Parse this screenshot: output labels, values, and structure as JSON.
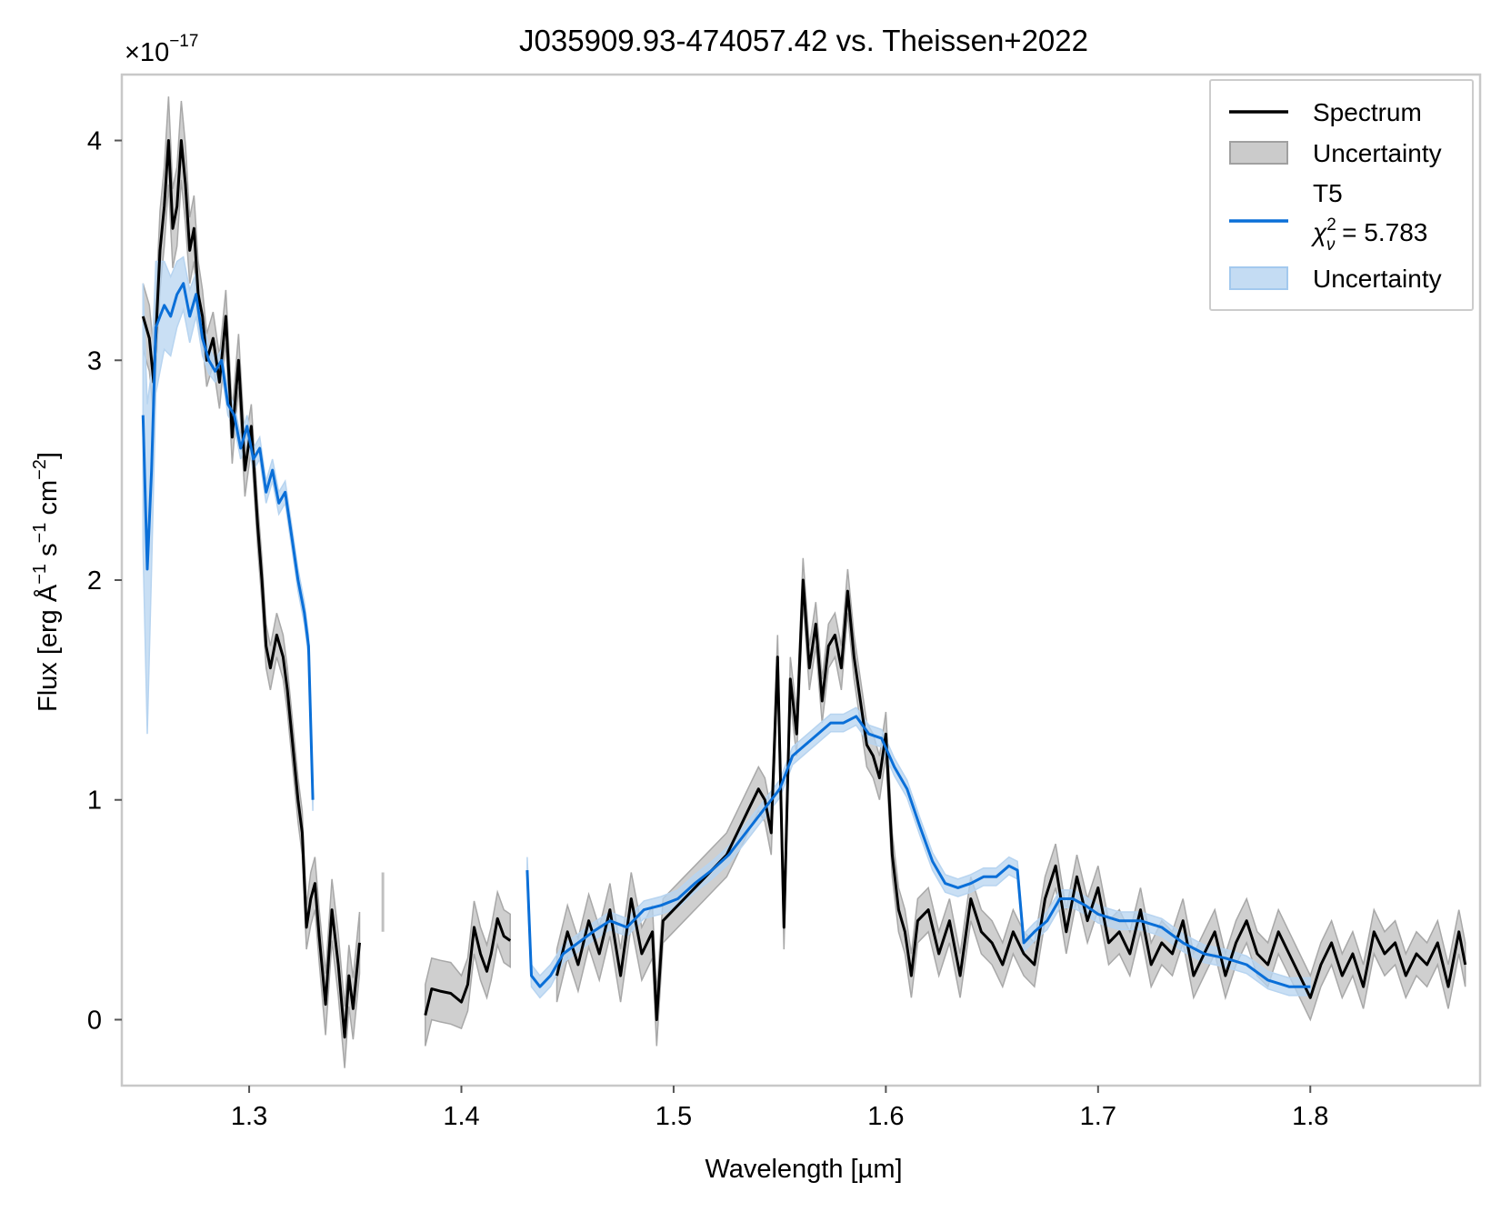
{
  "chart_data": {
    "type": "line",
    "title": "J035909.93-474057.42 vs. Theissen+2022",
    "xlabel": "Wavelength [µm]",
    "ylabel_parts": {
      "prefix": "Flux [erg Å",
      "sup1": "−1",
      "mid1": " s",
      "sup2": "−1",
      "mid2": " cm",
      "sup3": "−2",
      "suffix": "]"
    },
    "y_multiplier": {
      "base": "×10",
      "exponent": "−17"
    },
    "xlim": [
      1.24,
      1.88
    ],
    "ylim": [
      -0.3,
      4.3
    ],
    "xticks": [
      1.3,
      1.4,
      1.5,
      1.6,
      1.7,
      1.8
    ],
    "xtick_labels": [
      "1.3",
      "1.4",
      "1.5",
      "1.6",
      "1.7",
      "1.8"
    ],
    "yticks": [
      0,
      1,
      2,
      3,
      4
    ],
    "ytick_labels": [
      "0",
      "1",
      "2",
      "3",
      "4"
    ],
    "grid": false,
    "legend_position": "top-right",
    "legend": {
      "spectrum": "Spectrum",
      "spectrum_unc": "Uncertainty",
      "model_name": "T5",
      "chi_symbol": "χ",
      "chi_sub": "ν",
      "chi_sup": "2",
      "chi_value": " = 5.783",
      "model_unc": "Uncertainty"
    },
    "colors": {
      "spectrum": "#000000",
      "spectrum_band": "#a8a8a8",
      "model": "#0a6fd8",
      "model_band": "#b7d4f0",
      "frame": "#c8c8c8"
    },
    "series": [
      {
        "name": "Spectrum",
        "segments": [
          {
            "x": [
              1.25,
              1.253,
              1.255,
              1.258,
              1.26,
              1.262,
              1.264,
              1.266,
              1.268,
              1.27,
              1.272,
              1.274,
              1.276,
              1.278,
              1.28,
              1.283,
              1.286,
              1.289,
              1.292,
              1.295,
              1.298,
              1.301,
              1.304,
              1.306,
              1.308,
              1.31,
              1.313,
              1.316,
              1.318,
              1.32,
              1.323,
              1.325,
              1.327,
              1.329,
              1.331,
              1.333,
              1.336,
              1.339,
              1.342,
              1.345,
              1.347,
              1.349,
              1.352
            ],
            "y": [
              3.2,
              3.1,
              2.9,
              3.5,
              3.7,
              4.0,
              3.6,
              3.7,
              4.0,
              3.8,
              3.5,
              3.6,
              3.3,
              3.2,
              3.0,
              3.1,
              2.9,
              3.2,
              2.65,
              3.0,
              2.5,
              2.7,
              2.25,
              2.0,
              1.7,
              1.6,
              1.75,
              1.65,
              1.5,
              1.3,
              1.0,
              0.85,
              0.42,
              0.55,
              0.62,
              0.38,
              0.07,
              0.5,
              0.25,
              -0.08,
              0.2,
              0.05,
              0.35
            ],
            "err": [
              0.15,
              0.15,
              0.15,
              0.18,
              0.18,
              0.2,
              0.18,
              0.18,
              0.18,
              0.18,
              0.15,
              0.15,
              0.15,
              0.12,
              0.12,
              0.12,
              0.12,
              0.12,
              0.12,
              0.12,
              0.12,
              0.1,
              0.1,
              0.1,
              0.1,
              0.1,
              0.1,
              0.1,
              0.1,
              0.1,
              0.1,
              0.1,
              0.1,
              0.12,
              0.12,
              0.12,
              0.14,
              0.14,
              0.14,
              0.14,
              0.14,
              0.14,
              0.14
            ]
          },
          {
            "x": [
              1.383,
              1.386,
              1.39,
              1.395,
              1.4,
              1.403,
              1.406,
              1.409,
              1.412,
              1.414,
              1.417,
              1.42,
              1.423
            ],
            "y": [
              0.02,
              0.14,
              0.13,
              0.12,
              0.08,
              0.16,
              0.42,
              0.3,
              0.22,
              0.3,
              0.46,
              0.38,
              0.36
            ],
            "err": [
              0.14,
              0.14,
              0.14,
              0.14,
              0.12,
              0.12,
              0.12,
              0.12,
              0.12,
              0.12,
              0.12,
              0.12,
              0.12
            ]
          },
          {
            "x": [
              1.445,
              1.45,
              1.455,
              1.46,
              1.465,
              1.47,
              1.475,
              1.48,
              1.485,
              1.49,
              1.492,
              1.495,
              1.5,
              1.505,
              1.51,
              1.515,
              1.52,
              1.525,
              1.53,
              1.535,
              1.54,
              1.543,
              1.546,
              1.549,
              1.552,
              1.555,
              1.558,
              1.561,
              1.564,
              1.567,
              1.57,
              1.573,
              1.576,
              1.579,
              1.582,
              1.585,
              1.588,
              1.591,
              1.594,
              1.597,
              1.6,
              1.603,
              1.606,
              1.609,
              1.612,
              1.615,
              1.62,
              1.625,
              1.63,
              1.635,
              1.64,
              1.645,
              1.65,
              1.655,
              1.66,
              1.665,
              1.67,
              1.675,
              1.68,
              1.685,
              1.69,
              1.695,
              1.7,
              1.705,
              1.71,
              1.715,
              1.72,
              1.725,
              1.73,
              1.735,
              1.74,
              1.745,
              1.75,
              1.755,
              1.76,
              1.765,
              1.77,
              1.775,
              1.78,
              1.785,
              1.79,
              1.795,
              1.8,
              1.805,
              1.81,
              1.815,
              1.82,
              1.825,
              1.83,
              1.835,
              1.84,
              1.845,
              1.85,
              1.855,
              1.86,
              1.865,
              1.87,
              1.873
            ],
            "y": [
              0.2,
              0.4,
              0.25,
              0.45,
              0.3,
              0.5,
              0.2,
              0.55,
              0.3,
              0.4,
              0.0,
              0.45,
              0.5,
              0.55,
              0.6,
              0.65,
              0.7,
              0.75,
              0.85,
              0.95,
              1.05,
              1.0,
              0.85,
              1.65,
              0.42,
              1.55,
              1.3,
              2.0,
              1.6,
              1.8,
              1.45,
              1.7,
              1.75,
              1.6,
              1.95,
              1.65,
              1.45,
              1.25,
              1.2,
              1.1,
              1.3,
              0.75,
              0.5,
              0.4,
              0.2,
              0.45,
              0.5,
              0.3,
              0.45,
              0.2,
              0.55,
              0.4,
              0.35,
              0.25,
              0.4,
              0.3,
              0.25,
              0.55,
              0.7,
              0.4,
              0.65,
              0.45,
              0.6,
              0.35,
              0.4,
              0.3,
              0.5,
              0.25,
              0.35,
              0.3,
              0.45,
              0.2,
              0.3,
              0.4,
              0.2,
              0.35,
              0.45,
              0.3,
              0.25,
              0.4,
              0.3,
              0.2,
              0.1,
              0.25,
              0.35,
              0.2,
              0.3,
              0.15,
              0.4,
              0.3,
              0.35,
              0.2,
              0.3,
              0.25,
              0.35,
              0.15,
              0.4,
              0.25
            ],
            "err": [
              0.12,
              0.12,
              0.12,
              0.12,
              0.12,
              0.12,
              0.12,
              0.12,
              0.12,
              0.12,
              0.12,
              0.1,
              0.1,
              0.1,
              0.1,
              0.1,
              0.1,
              0.1,
              0.1,
              0.1,
              0.1,
              0.1,
              0.1,
              0.1,
              0.1,
              0.1,
              0.1,
              0.1,
              0.1,
              0.1,
              0.1,
              0.1,
              0.1,
              0.1,
              0.1,
              0.1,
              0.1,
              0.1,
              0.1,
              0.1,
              0.1,
              0.1,
              0.1,
              0.1,
              0.1,
              0.1,
              0.1,
              0.1,
              0.1,
              0.1,
              0.1,
              0.1,
              0.1,
              0.1,
              0.1,
              0.1,
              0.1,
              0.1,
              0.1,
              0.1,
              0.1,
              0.1,
              0.1,
              0.1,
              0.1,
              0.1,
              0.1,
              0.1,
              0.1,
              0.1,
              0.1,
              0.1,
              0.1,
              0.1,
              0.1,
              0.1,
              0.1,
              0.1,
              0.1,
              0.1,
              0.1,
              0.1,
              0.1,
              0.1,
              0.1,
              0.1,
              0.1,
              0.1,
              0.1,
              0.1,
              0.1,
              0.1,
              0.1,
              0.1,
              0.1,
              0.1,
              0.1,
              0.1
            ]
          }
        ]
      },
      {
        "name": "T5",
        "segments": [
          {
            "x": [
              1.25,
              1.252,
              1.254,
              1.256,
              1.258,
              1.26,
              1.263,
              1.266,
              1.269,
              1.272,
              1.275,
              1.278,
              1.281,
              1.284,
              1.287,
              1.29,
              1.293,
              1.296,
              1.299,
              1.302,
              1.305,
              1.308,
              1.311,
              1.314,
              1.317,
              1.32,
              1.323,
              1.326,
              1.328,
              1.33
            ],
            "y": [
              2.75,
              2.05,
              2.5,
              3.15,
              3.2,
              3.25,
              3.2,
              3.3,
              3.35,
              3.2,
              3.3,
              3.1,
              3.0,
              2.95,
              3.0,
              2.8,
              2.75,
              2.6,
              2.7,
              2.55,
              2.6,
              2.4,
              2.5,
              2.35,
              2.4,
              2.2,
              2.0,
              1.85,
              1.7,
              1.0
            ],
            "err": [
              0.6,
              0.75,
              0.45,
              0.3,
              0.25,
              0.2,
              0.18,
              0.15,
              0.12,
              0.12,
              0.1,
              0.08,
              0.06,
              0.05,
              0.05,
              0.05,
              0.05,
              0.05,
              0.05,
              0.05,
              0.05,
              0.05,
              0.05,
              0.05,
              0.05,
              0.05,
              0.05,
              0.05,
              0.05,
              0.05
            ]
          },
          {
            "x": [
              1.431,
              1.433,
              1.437,
              1.442,
              1.448,
              1.455,
              1.462,
              1.47,
              1.478,
              1.486,
              1.494,
              1.502,
              1.51,
              1.518,
              1.526,
              1.534,
              1.542,
              1.55,
              1.556,
              1.562,
              1.568,
              1.574,
              1.58,
              1.586,
              1.592,
              1.598,
              1.604,
              1.61,
              1.616,
              1.622,
              1.628,
              1.634,
              1.64,
              1.646,
              1.652,
              1.658,
              1.662,
              1.665,
              1.67,
              1.676,
              1.682,
              1.688,
              1.694,
              1.7,
              1.71,
              1.72,
              1.73,
              1.74,
              1.75,
              1.76,
              1.77,
              1.78,
              1.79,
              1.8
            ],
            "y": [
              0.68,
              0.2,
              0.15,
              0.2,
              0.3,
              0.35,
              0.4,
              0.45,
              0.42,
              0.5,
              0.52,
              0.55,
              0.62,
              0.68,
              0.75,
              0.85,
              0.95,
              1.05,
              1.2,
              1.25,
              1.3,
              1.35,
              1.35,
              1.38,
              1.3,
              1.28,
              1.15,
              1.05,
              0.88,
              0.72,
              0.62,
              0.6,
              0.62,
              0.65,
              0.65,
              0.7,
              0.68,
              0.35,
              0.4,
              0.45,
              0.55,
              0.55,
              0.52,
              0.48,
              0.45,
              0.45,
              0.42,
              0.35,
              0.3,
              0.28,
              0.25,
              0.18,
              0.15,
              0.15
            ],
            "err": [
              0.06,
              0.05,
              0.05,
              0.05,
              0.04,
              0.04,
              0.04,
              0.04,
              0.04,
              0.04,
              0.04,
              0.04,
              0.04,
              0.04,
              0.04,
              0.04,
              0.04,
              0.04,
              0.04,
              0.04,
              0.04,
              0.04,
              0.04,
              0.04,
              0.04,
              0.04,
              0.04,
              0.04,
              0.04,
              0.04,
              0.04,
              0.04,
              0.04,
              0.04,
              0.04,
              0.04,
              0.04,
              0.04,
              0.04,
              0.04,
              0.04,
              0.04,
              0.04,
              0.04,
              0.04,
              0.04,
              0.04,
              0.04,
              0.04,
              0.04,
              0.04,
              0.04,
              0.04,
              0.04
            ]
          }
        ]
      }
    ],
    "annotations": [
      {
        "type": "vertical_band_marker",
        "x": 1.363,
        "y_low": 0.4,
        "y_high": 0.67
      }
    ]
  }
}
